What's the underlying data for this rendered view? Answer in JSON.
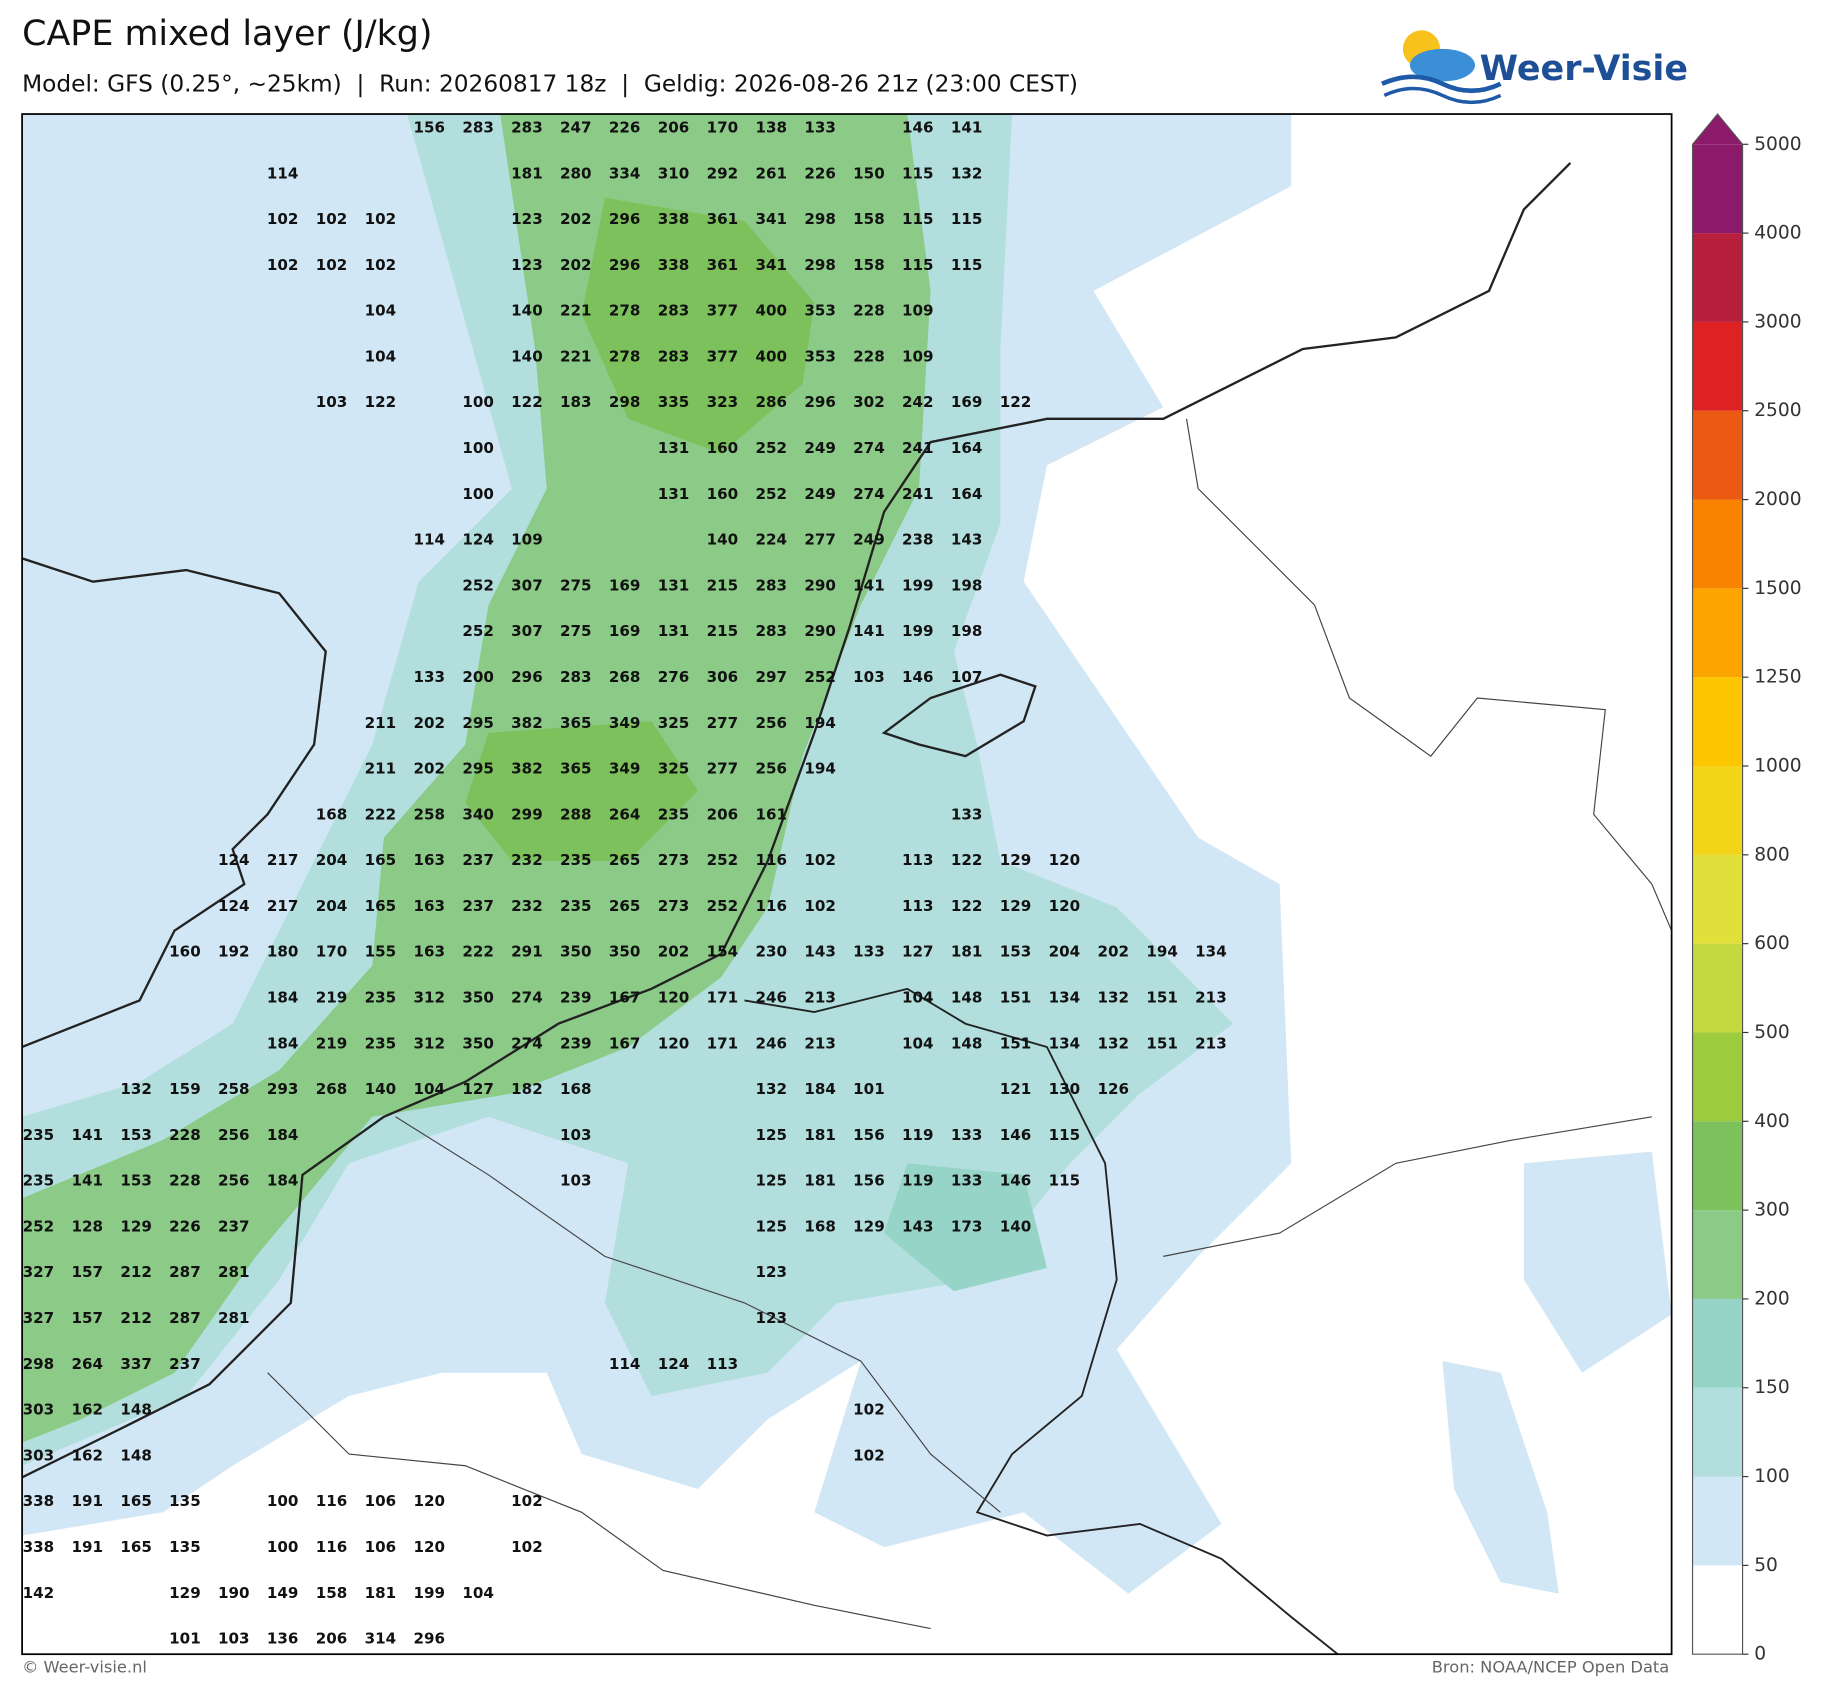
{
  "header": {
    "title": "CAPE mixed layer (J/kg)",
    "subtitle": "Model: GFS (0.25°, ~25km)  |  Run: 20260817 18z  |  Geldig: 2026-08-26 21z (23:00 CEST)",
    "logo": "Weer-Visie"
  },
  "map": {
    "grid_rows": [
      [
        null,
        null,
        null,
        null,
        null,
        null,
        null,
        null,
        156,
        283,
        283,
        247,
        226,
        206,
        170,
        138,
        133,
        null,
        146,
        141,
        null,
        null,
        null,
        null,
        null
      ],
      [
        null,
        null,
        null,
        null,
        null,
        114,
        null,
        null,
        null,
        null,
        181,
        280,
        334,
        310,
        292,
        261,
        226,
        150,
        115,
        132,
        null,
        null,
        null,
        null,
        null
      ],
      [
        null,
        null,
        null,
        null,
        null,
        102,
        102,
        102,
        null,
        null,
        123,
        202,
        296,
        338,
        361,
        341,
        298,
        158,
        115,
        115,
        null,
        null,
        null,
        null,
        null
      ],
      [
        null,
        null,
        null,
        null,
        null,
        102,
        102,
        102,
        null,
        null,
        123,
        202,
        296,
        338,
        361,
        341,
        298,
        158,
        115,
        115,
        null,
        null,
        null,
        null,
        null
      ],
      [
        null,
        null,
        null,
        null,
        null,
        null,
        null,
        104,
        null,
        null,
        140,
        221,
        278,
        283,
        377,
        400,
        353,
        228,
        109,
        null,
        null,
        null,
        null,
        null,
        null
      ],
      [
        null,
        null,
        null,
        null,
        null,
        null,
        null,
        104,
        null,
        null,
        140,
        221,
        278,
        283,
        377,
        400,
        353,
        228,
        109,
        null,
        null,
        null,
        null,
        null,
        null
      ],
      [
        null,
        null,
        null,
        null,
        null,
        null,
        103,
        122,
        null,
        100,
        122,
        183,
        298,
        335,
        323,
        286,
        296,
        302,
        242,
        169,
        122,
        null,
        null,
        null,
        null
      ],
      [
        null,
        null,
        null,
        null,
        null,
        null,
        null,
        null,
        null,
        100,
        null,
        null,
        null,
        131,
        160,
        252,
        249,
        274,
        241,
        164,
        null,
        null,
        null,
        null,
        null
      ],
      [
        null,
        null,
        null,
        null,
        null,
        null,
        null,
        null,
        null,
        100,
        null,
        null,
        null,
        131,
        160,
        252,
        249,
        274,
        241,
        164,
        null,
        null,
        null,
        null,
        null
      ],
      [
        null,
        null,
        null,
        null,
        null,
        null,
        null,
        null,
        114,
        124,
        109,
        null,
        null,
        null,
        140,
        224,
        277,
        249,
        238,
        143,
        null,
        null,
        null,
        null,
        null
      ],
      [
        null,
        null,
        null,
        null,
        null,
        null,
        null,
        null,
        null,
        252,
        307,
        275,
        169,
        131,
        215,
        283,
        290,
        141,
        199,
        198,
        null,
        null,
        null,
        null,
        null
      ],
      [
        null,
        null,
        null,
        null,
        null,
        null,
        null,
        null,
        null,
        252,
        307,
        275,
        169,
        131,
        215,
        283,
        290,
        141,
        199,
        198,
        null,
        null,
        null,
        null,
        null
      ],
      [
        null,
        null,
        null,
        null,
        null,
        null,
        null,
        null,
        133,
        200,
        296,
        283,
        268,
        276,
        306,
        297,
        252,
        103,
        146,
        107,
        null,
        null,
        null,
        null,
        null
      ],
      [
        null,
        null,
        null,
        null,
        null,
        null,
        null,
        211,
        202,
        295,
        382,
        365,
        349,
        325,
        277,
        256,
        194,
        null,
        null,
        null,
        null,
        null,
        null,
        null,
        null
      ],
      [
        null,
        null,
        null,
        null,
        null,
        null,
        null,
        211,
        202,
        295,
        382,
        365,
        349,
        325,
        277,
        256,
        194,
        null,
        null,
        null,
        null,
        null,
        null,
        null,
        null
      ],
      [
        null,
        null,
        null,
        null,
        null,
        null,
        168,
        222,
        258,
        340,
        299,
        288,
        264,
        235,
        206,
        161,
        null,
        null,
        null,
        133,
        null,
        null,
        null,
        null,
        null
      ],
      [
        null,
        null,
        null,
        null,
        124,
        217,
        204,
        165,
        163,
        237,
        232,
        235,
        265,
        273,
        252,
        116,
        102,
        null,
        113,
        122,
        129,
        120,
        null,
        null,
        null
      ],
      [
        null,
        null,
        null,
        null,
        124,
        217,
        204,
        165,
        163,
        237,
        232,
        235,
        265,
        273,
        252,
        116,
        102,
        null,
        113,
        122,
        129,
        120,
        null,
        null,
        null
      ],
      [
        null,
        null,
        null,
        160,
        192,
        180,
        170,
        155,
        163,
        222,
        291,
        350,
        350,
        202,
        154,
        230,
        143,
        133,
        127,
        181,
        153,
        204,
        202,
        194,
        134
      ],
      [
        null,
        null,
        null,
        null,
        null,
        184,
        219,
        235,
        312,
        350,
        274,
        239,
        167,
        120,
        171,
        246,
        213,
        null,
        104,
        148,
        151,
        134,
        132,
        151,
        213
      ],
      [
        null,
        null,
        null,
        null,
        null,
        184,
        219,
        235,
        312,
        350,
        274,
        239,
        167,
        120,
        171,
        246,
        213,
        null,
        104,
        148,
        151,
        134,
        132,
        151,
        213
      ],
      [
        null,
        null,
        132,
        159,
        258,
        293,
        268,
        140,
        104,
        127,
        182,
        168,
        null,
        null,
        null,
        132,
        184,
        101,
        null,
        null,
        121,
        130,
        126,
        null,
        null
      ],
      [
        235,
        141,
        153,
        228,
        256,
        184,
        null,
        null,
        null,
        null,
        null,
        103,
        null,
        null,
        null,
        125,
        181,
        156,
        119,
        133,
        146,
        115,
        null,
        null,
        null
      ],
      [
        235,
        141,
        153,
        228,
        256,
        184,
        null,
        null,
        null,
        null,
        null,
        103,
        null,
        null,
        null,
        125,
        181,
        156,
        119,
        133,
        146,
        115,
        null,
        null,
        null
      ],
      [
        252,
        128,
        129,
        226,
        237,
        null,
        null,
        null,
        null,
        null,
        null,
        null,
        null,
        null,
        null,
        125,
        168,
        129,
        143,
        173,
        140,
        null,
        null,
        null,
        null
      ],
      [
        327,
        157,
        212,
        287,
        281,
        null,
        null,
        null,
        null,
        null,
        null,
        null,
        null,
        null,
        null,
        123,
        null,
        null,
        null,
        null,
        null,
        null,
        null,
        null,
        null
      ],
      [
        327,
        157,
        212,
        287,
        281,
        null,
        null,
        null,
        null,
        null,
        null,
        null,
        null,
        null,
        null,
        123,
        null,
        null,
        null,
        null,
        null,
        null,
        null,
        null,
        null
      ],
      [
        298,
        264,
        337,
        237,
        null,
        null,
        null,
        null,
        null,
        null,
        null,
        null,
        114,
        124,
        113,
        null,
        null,
        null,
        null,
        null,
        null,
        null,
        null,
        null,
        null
      ],
      [
        303,
        162,
        148,
        null,
        null,
        null,
        null,
        null,
        null,
        null,
        null,
        null,
        null,
        null,
        null,
        null,
        null,
        102,
        null,
        null,
        null,
        null,
        null,
        null,
        null
      ],
      [
        303,
        162,
        148,
        null,
        null,
        null,
        null,
        null,
        null,
        null,
        null,
        null,
        null,
        null,
        null,
        null,
        null,
        102,
        null,
        null,
        null,
        null,
        null,
        null,
        null
      ],
      [
        338,
        191,
        165,
        135,
        null,
        100,
        116,
        106,
        120,
        null,
        102,
        null,
        null,
        null,
        null,
        null,
        null,
        null,
        null,
        null,
        null,
        null,
        null,
        null,
        null
      ],
      [
        338,
        191,
        165,
        135,
        null,
        100,
        116,
        106,
        120,
        null,
        102,
        null,
        null,
        null,
        null,
        null,
        null,
        null,
        null,
        null,
        null,
        null,
        null,
        null,
        null
      ],
      [
        142,
        null,
        null,
        129,
        190,
        149,
        158,
        181,
        199,
        104,
        null,
        null,
        null,
        null,
        null,
        null,
        null,
        null,
        null,
        null,
        null,
        null,
        null,
        null,
        null
      ],
      [
        null,
        null,
        null,
        101,
        103,
        136,
        206,
        314,
        296,
        null,
        null,
        null,
        null,
        null,
        null,
        null,
        null,
        null,
        null,
        null,
        null,
        null,
        null,
        null,
        null
      ]
    ]
  },
  "colorbar": {
    "levels": [
      0,
      50,
      100,
      150,
      200,
      300,
      400,
      500,
      600,
      800,
      1000,
      1250,
      1500,
      2000,
      2500,
      3000,
      4000,
      5000
    ],
    "colors": [
      "#ffffff",
      "#d2e7f5",
      "#b2dfdd",
      "#95d4c6",
      "#8cca88",
      "#7cc15b",
      "#9ccb3d",
      "#c3d93d",
      "#e1e03a",
      "#f2d519",
      "#fcc600",
      "#fca400",
      "#f98300",
      "#ec5912",
      "#de2121",
      "#b71f3d",
      "#8c1a6b"
    ]
  },
  "footer": {
    "copyright": "© Weer-visie.nl",
    "source": "Bron: NOAA/NCEP Open Data"
  }
}
